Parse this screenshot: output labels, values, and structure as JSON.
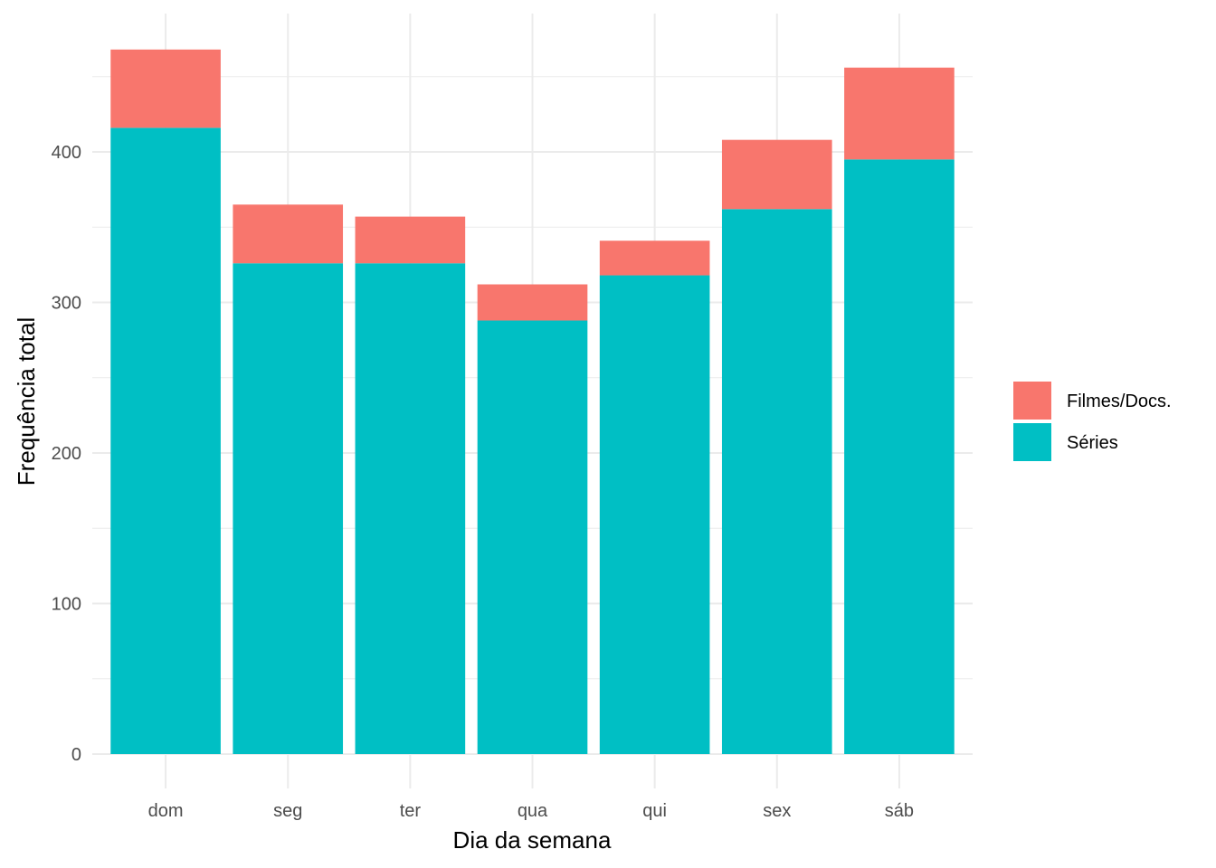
{
  "chart_data": {
    "type": "bar",
    "stacked": true,
    "categories": [
      "dom",
      "seg",
      "ter",
      "qua",
      "qui",
      "sex",
      "sáb"
    ],
    "series": [
      {
        "name": "Séries",
        "color": "#00BFC4",
        "values": [
          416,
          326,
          326,
          288,
          318,
          362,
          395
        ]
      },
      {
        "name": "Filmes/Docs.",
        "color": "#F8766D",
        "values": [
          52,
          39,
          31,
          24,
          23,
          46,
          61
        ]
      }
    ],
    "xlabel": "Dia da semana",
    "ylabel": "Frequência total",
    "ylim": [
      0,
      480
    ],
    "yticks": [
      "0",
      "100",
      "200",
      "300",
      "400"
    ],
    "grid": true,
    "legend_position": "right",
    "legend": [
      {
        "label": "Filmes/Docs.",
        "color": "#F8766D"
      },
      {
        "label": "Séries",
        "color": "#00BFC4"
      }
    ]
  }
}
